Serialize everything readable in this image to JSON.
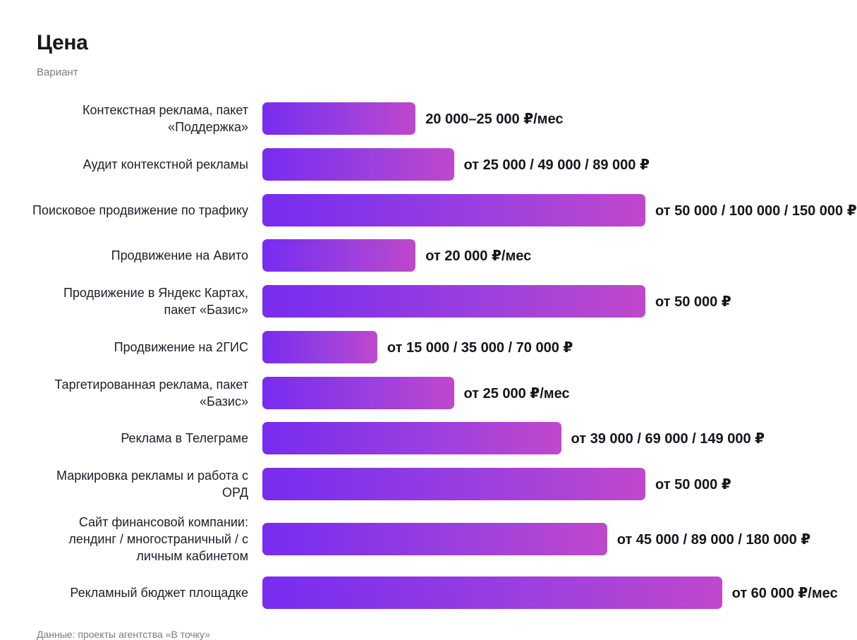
{
  "header": {
    "title": "Цена",
    "subtitle": "Вариант"
  },
  "chart_data": {
    "type": "bar",
    "orientation": "horizontal",
    "title": "Цена",
    "subtitle": "Вариант",
    "value_unit": "₽",
    "xlim": [
      0,
      150000
    ],
    "grid": false,
    "legend": "none",
    "bar_color_start": "#772cf0",
    "bar_color_end": "#bf48cc",
    "categories": [
      "Контекстная реклама, пакет «Поддержка»",
      "Аудит контекстной рекламы",
      "Поисковое продвижение по трафику",
      "Продвижение на Авито",
      "Продвижение в Яндекс Картах, пакет «Базис»",
      "Продвижение на 2ГИС",
      "Таргетированная реклама, пакет «Базис»",
      "Реклама в Телеграме",
      "Маркировка рекламы и работа с ОРД",
      "Сайт финансовой компании: лендинг / многостраничный / с личным кабинетом",
      "Рекламный бюджет площадке"
    ],
    "values": [
      20000,
      25000,
      50000,
      20000,
      50000,
      15000,
      25000,
      39000,
      50000,
      45000,
      60000
    ],
    "data_labels": [
      "20 000–25 000 ₽/мес",
      "от 25 000 / 49 000 / 89 000 ₽",
      "от 50 000 / 100 000 / 150 000 ₽",
      "от 20 000 ₽/мес",
      "от 50 000 ₽",
      "от 15 000 / 35 000 / 70 000 ₽",
      "от 25 000 ₽/мес",
      "от 39 000 / 69 000 / 149 000 ₽",
      "от 50 000 ₽",
      "от 45 000 / 89 000 / 180 000 ₽",
      "от 60 000 ₽/мес"
    ]
  },
  "footer": {
    "source": "Данные: проекты агентства «В точку»"
  }
}
